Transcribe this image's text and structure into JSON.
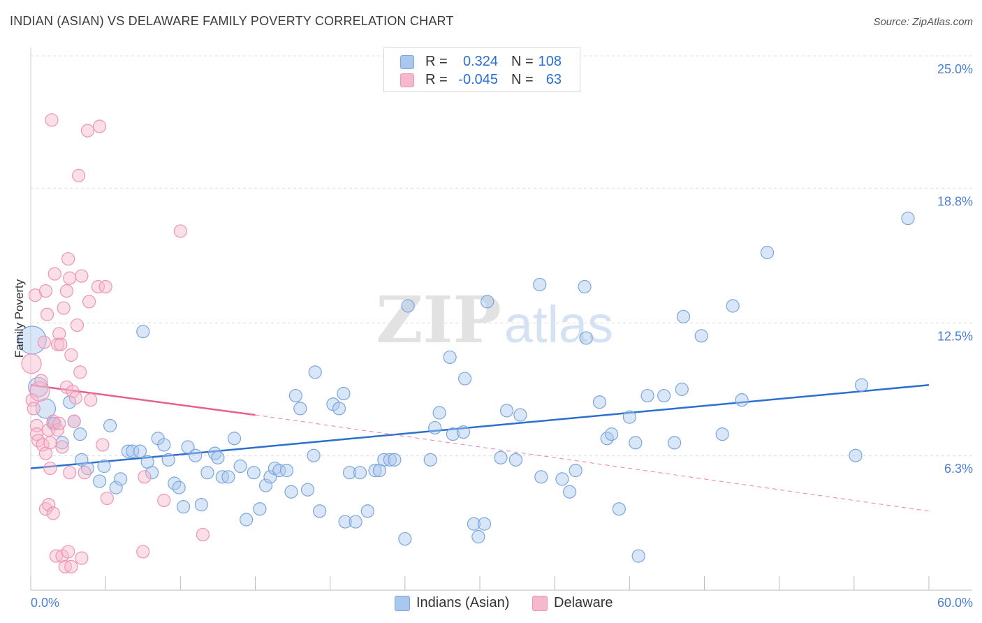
{
  "header": {
    "title": "INDIAN (ASIAN) VS DELAWARE FAMILY POVERTY CORRELATION CHART",
    "source": "Source: ZipAtlas.com"
  },
  "colors": {
    "blue_fill": "#aac8ee",
    "blue_stroke": "#7aa6dc",
    "blue_line": "#2b6fcf",
    "pink_fill": "#f6b8cb",
    "pink_stroke": "#ee94b1",
    "pink_line": "#e8608f",
    "axis_label": "#4a7fd0",
    "grid": "#dcdcdc"
  },
  "legend": {
    "rows": [
      {
        "series": "blue",
        "r_label": "R =",
        "r_value": "0.324",
        "n_label": "N =",
        "n_value": "108"
      },
      {
        "series": "pink",
        "r_label": "R =",
        "r_value": "-0.045",
        "n_label": "N =",
        "n_value": "63"
      }
    ]
  },
  "bottom_legend": [
    {
      "label": "Indians (Asian)",
      "series": "blue"
    },
    {
      "label": "Delaware",
      "series": "pink"
    }
  ],
  "watermark": {
    "zip": "ZIP",
    "atlas": "atlas"
  },
  "chart_data": {
    "type": "scatter",
    "title": "INDIAN (ASIAN) VS DELAWARE FAMILY POVERTY CORRELATION CHART",
    "xlabel": "",
    "ylabel": "Family Poverty",
    "xlim": [
      0,
      60
    ],
    "ylim": [
      0,
      25
    ],
    "x_tick_labels": [
      "0.0%",
      "60.0%"
    ],
    "y_ticks": [
      6.3,
      12.5,
      18.8,
      25.0
    ],
    "y_tick_labels": [
      "6.3%",
      "12.5%",
      "18.8%",
      "25.0%"
    ],
    "grid": true,
    "legend_position": "top-center",
    "series": [
      {
        "name": "Indians (Asian)",
        "color": "#aac8ee",
        "trend": {
          "x": [
            0,
            60
          ],
          "y": [
            5.7,
            9.6
          ],
          "style": "solid"
        },
        "points": [
          [
            0.1,
            11.7,
            3
          ],
          [
            0.5,
            9.5,
            2
          ],
          [
            1.0,
            8.5,
            2
          ],
          [
            1.5,
            7.8,
            1
          ],
          [
            1.6,
            7.8,
            1
          ],
          [
            2.1,
            6.9,
            1
          ],
          [
            2.6,
            8.8,
            1
          ],
          [
            2.9,
            7.9,
            1
          ],
          [
            3.3,
            7.3,
            1
          ],
          [
            3.4,
            6.1,
            1
          ],
          [
            3.8,
            5.7,
            1
          ],
          [
            4.6,
            5.1,
            1
          ],
          [
            4.9,
            5.8,
            1
          ],
          [
            5.3,
            7.7,
            1
          ],
          [
            5.7,
            4.8,
            1
          ],
          [
            6.0,
            5.2,
            1
          ],
          [
            6.5,
            6.5,
            1
          ],
          [
            6.8,
            6.5,
            1
          ],
          [
            7.3,
            6.5,
            1
          ],
          [
            7.5,
            12.1,
            1
          ],
          [
            7.8,
            6.0,
            1
          ],
          [
            8.1,
            5.5,
            1
          ],
          [
            8.5,
            7.1,
            1
          ],
          [
            8.9,
            6.8,
            1
          ],
          [
            9.2,
            6.1,
            1
          ],
          [
            9.6,
            5.0,
            1
          ],
          [
            9.9,
            4.8,
            1
          ],
          [
            10.2,
            3.9,
            1
          ],
          [
            10.5,
            6.7,
            1
          ],
          [
            11.0,
            6.3,
            1
          ],
          [
            11.4,
            4.0,
            1
          ],
          [
            11.8,
            5.5,
            1
          ],
          [
            12.3,
            6.4,
            1
          ],
          [
            12.5,
            6.2,
            1
          ],
          [
            12.8,
            5.3,
            1
          ],
          [
            13.2,
            5.3,
            1
          ],
          [
            13.6,
            7.1,
            1
          ],
          [
            14.0,
            5.8,
            1
          ],
          [
            14.4,
            3.3,
            1
          ],
          [
            14.9,
            5.5,
            1
          ],
          [
            15.3,
            3.8,
            1
          ],
          [
            15.7,
            4.9,
            1
          ],
          [
            16.0,
            5.3,
            1
          ],
          [
            16.3,
            5.7,
            1
          ],
          [
            16.6,
            5.6,
            1
          ],
          [
            17.1,
            5.6,
            1
          ],
          [
            17.4,
            4.6,
            1
          ],
          [
            17.7,
            9.1,
            1
          ],
          [
            18.0,
            8.5,
            1
          ],
          [
            18.5,
            4.7,
            1
          ],
          [
            18.9,
            6.3,
            1
          ],
          [
            19.0,
            10.2,
            1
          ],
          [
            19.3,
            3.7,
            1
          ],
          [
            20.2,
            8.7,
            1
          ],
          [
            20.6,
            8.5,
            1
          ],
          [
            20.9,
            9.2,
            1
          ],
          [
            21.0,
            3.2,
            1
          ],
          [
            21.3,
            5.5,
            1
          ],
          [
            21.7,
            3.2,
            1
          ],
          [
            22.0,
            5.5,
            1
          ],
          [
            22.5,
            3.7,
            1
          ],
          [
            23.0,
            5.6,
            1
          ],
          [
            23.3,
            5.6,
            1
          ],
          [
            23.6,
            6.1,
            1
          ],
          [
            24.0,
            6.1,
            1
          ],
          [
            24.3,
            6.1,
            1
          ],
          [
            25.0,
            2.4,
            1
          ],
          [
            25.2,
            13.3,
            1
          ],
          [
            26.7,
            6.1,
            1
          ],
          [
            27.0,
            7.6,
            1
          ],
          [
            27.3,
            8.3,
            1
          ],
          [
            28.0,
            10.9,
            1
          ],
          [
            28.2,
            7.3,
            1
          ],
          [
            28.9,
            7.4,
            1
          ],
          [
            29.0,
            9.9,
            1
          ],
          [
            29.6,
            3.1,
            1
          ],
          [
            29.9,
            2.5,
            1
          ],
          [
            30.3,
            3.1,
            1
          ],
          [
            30.5,
            13.5,
            1
          ],
          [
            31.4,
            6.2,
            1
          ],
          [
            31.8,
            8.4,
            1
          ],
          [
            32.4,
            6.1,
            1
          ],
          [
            32.7,
            8.2,
            1
          ],
          [
            34.0,
            14.3,
            1
          ],
          [
            34.1,
            5.3,
            1
          ],
          [
            35.5,
            5.2,
            1
          ],
          [
            36.0,
            4.6,
            1
          ],
          [
            36.4,
            5.6,
            1
          ],
          [
            37.0,
            14.2,
            1
          ],
          [
            37.1,
            11.8,
            1
          ],
          [
            38.0,
            8.8,
            1
          ],
          [
            38.5,
            7.1,
            1
          ],
          [
            38.8,
            7.3,
            1
          ],
          [
            39.3,
            3.8,
            1
          ],
          [
            40.0,
            8.1,
            1
          ],
          [
            40.4,
            6.9,
            1
          ],
          [
            40.6,
            1.6,
            1
          ],
          [
            41.2,
            9.1,
            1
          ],
          [
            42.3,
            9.1,
            1
          ],
          [
            43.0,
            6.9,
            1
          ],
          [
            43.5,
            9.4,
            1
          ],
          [
            43.6,
            12.8,
            1
          ],
          [
            44.8,
            11.9,
            1
          ],
          [
            46.2,
            7.3,
            1
          ],
          [
            46.9,
            13.3,
            1
          ],
          [
            47.5,
            8.9,
            1
          ],
          [
            49.2,
            15.8,
            1
          ],
          [
            55.1,
            6.3,
            1
          ],
          [
            55.5,
            9.6,
            1
          ],
          [
            58.6,
            17.4,
            1
          ]
        ]
      },
      {
        "name": "Delaware",
        "color": "#f6b8cb",
        "trend": {
          "x": [
            0,
            15
          ],
          "y": [
            9.6,
            8.2
          ],
          "style": "solid",
          "extended": {
            "x": [
              15,
              60
            ],
            "y": [
              8.2,
              3.7
            ],
            "style": "dashed"
          }
        },
        "points": [
          [
            0.05,
            10.6,
            2
          ],
          [
            0.1,
            8.9,
            1
          ],
          [
            0.2,
            8.5,
            1
          ],
          [
            0.3,
            13.8,
            1
          ],
          [
            0.4,
            7.7,
            1
          ],
          [
            0.4,
            7.3,
            1
          ],
          [
            0.5,
            7.0,
            1
          ],
          [
            0.6,
            9.3,
            2
          ],
          [
            0.7,
            9.8,
            1
          ],
          [
            0.8,
            6.8,
            1
          ],
          [
            0.9,
            11.6,
            1
          ],
          [
            1.0,
            14.0,
            1
          ],
          [
            1.0,
            6.4,
            1
          ],
          [
            1.0,
            3.8,
            1
          ],
          [
            1.1,
            12.9,
            1
          ],
          [
            1.2,
            7.5,
            1
          ],
          [
            1.2,
            4.0,
            1
          ],
          [
            1.3,
            6.9,
            1
          ],
          [
            1.3,
            5.7,
            1
          ],
          [
            1.4,
            22.0,
            1
          ],
          [
            1.5,
            3.6,
            1
          ],
          [
            1.5,
            7.9,
            1
          ],
          [
            1.6,
            14.8,
            1
          ],
          [
            1.7,
            1.6,
            1
          ],
          [
            1.8,
            11.5,
            1
          ],
          [
            1.8,
            7.5,
            1
          ],
          [
            1.9,
            12.0,
            1
          ],
          [
            1.9,
            7.8,
            1
          ],
          [
            2.0,
            11.5,
            1
          ],
          [
            2.1,
            6.7,
            1
          ],
          [
            2.1,
            1.6,
            1
          ],
          [
            2.2,
            13.2,
            1
          ],
          [
            2.3,
            1.1,
            1
          ],
          [
            2.4,
            14.0,
            1
          ],
          [
            2.4,
            9.5,
            1
          ],
          [
            2.5,
            15.5,
            1
          ],
          [
            2.5,
            1.8,
            1
          ],
          [
            2.6,
            14.6,
            1
          ],
          [
            2.6,
            5.5,
            1
          ],
          [
            2.7,
            11.0,
            1
          ],
          [
            2.7,
            1.1,
            1
          ],
          [
            2.8,
            9.3,
            1
          ],
          [
            2.9,
            7.9,
            1
          ],
          [
            3.0,
            9.0,
            1
          ],
          [
            3.1,
            12.4,
            1
          ],
          [
            3.2,
            19.4,
            1
          ],
          [
            3.3,
            10.2,
            1
          ],
          [
            3.4,
            14.7,
            1
          ],
          [
            3.4,
            1.5,
            1
          ],
          [
            3.6,
            5.5,
            1
          ],
          [
            3.8,
            21.5,
            1
          ],
          [
            3.9,
            13.5,
            1
          ],
          [
            4.0,
            8.9,
            1
          ],
          [
            4.5,
            14.2,
            1
          ],
          [
            4.6,
            21.7,
            1
          ],
          [
            4.8,
            6.8,
            1
          ],
          [
            5.0,
            14.2,
            1
          ],
          [
            5.1,
            4.3,
            1
          ],
          [
            7.5,
            1.8,
            1
          ],
          [
            7.6,
            5.3,
            1
          ],
          [
            8.9,
            4.2,
            1
          ],
          [
            10.0,
            16.8,
            1
          ],
          [
            11.5,
            2.6,
            1
          ]
        ]
      }
    ]
  }
}
